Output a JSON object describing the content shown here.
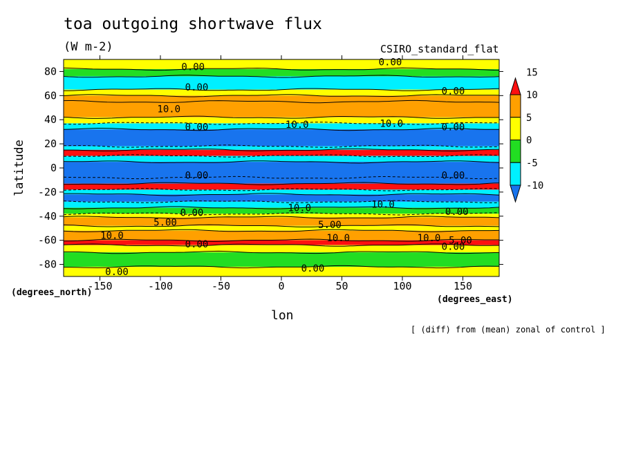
{
  "header": {
    "title": "toa outgoing shortwave flux",
    "units": "(W m-2)",
    "model": "CSIRO_standard_flat",
    "note": "[ (diff) from (mean) zonal of control ]"
  },
  "chart_data": {
    "type": "heatmap",
    "title": "toa outgoing shortwave flux",
    "subtitle": "(W m-2)",
    "xlabel": "lon",
    "ylabel": "latitude",
    "x_units": "(degrees_east)",
    "y_units": "(degrees_north)",
    "xlim": [
      -180,
      180
    ],
    "ylim": [
      -90,
      90
    ],
    "x_ticks": [
      -150,
      -100,
      -50,
      0,
      50,
      100,
      150
    ],
    "y_ticks": [
      -80,
      -60,
      -40,
      -20,
      0,
      20,
      40,
      60,
      80
    ],
    "colorbar": {
      "levels": [
        -10,
        -5,
        0,
        5,
        10,
        15
      ],
      "colors": [
        "#1874ee",
        "#00f0ff",
        "#22dd22",
        "#ffff00",
        "#ffa000",
        "#ff1010"
      ],
      "extend": "both"
    },
    "bands": [
      {
        "lat": [
          82,
          90
        ],
        "value": 2
      },
      {
        "lat": [
          76,
          82
        ],
        "value": -2
      },
      {
        "lat": [
          65,
          76
        ],
        "value": -7
      },
      {
        "lat": [
          60,
          65
        ],
        "value": 2
      },
      {
        "lat": [
          55,
          60
        ],
        "value": 7
      },
      {
        "lat": [
          42,
          55
        ],
        "value": 7
      },
      {
        "lat": [
          37,
          42
        ],
        "value": 2
      },
      {
        "lat": [
          32,
          37
        ],
        "value": -7
      },
      {
        "lat": [
          18,
          32
        ],
        "value": -12
      },
      {
        "lat": [
          15,
          18
        ],
        "value": -7
      },
      {
        "lat": [
          10,
          15
        ],
        "value": 17
      },
      {
        "lat": [
          5,
          10
        ],
        "value": -7
      },
      {
        "lat": [
          -8,
          5
        ],
        "value": -12
      },
      {
        "lat": [
          -13,
          5
        ],
        "value": -12
      },
      {
        "lat": [
          -18,
          -13
        ],
        "value": 17
      },
      {
        "lat": [
          -22,
          -18
        ],
        "value": -7
      },
      {
        "lat": [
          -28,
          -22
        ],
        "value": -12
      },
      {
        "lat": [
          -33,
          -28
        ],
        "value": -7
      },
      {
        "lat": [
          -38,
          -33
        ],
        "value": -2
      },
      {
        "lat": [
          -41,
          -38
        ],
        "value": 2
      },
      {
        "lat": [
          -48,
          -41
        ],
        "value": 7
      },
      {
        "lat": [
          -52,
          -48
        ],
        "value": 2
      },
      {
        "lat": [
          -60,
          -52
        ],
        "value": 7
      },
      {
        "lat": [
          -64,
          -60
        ],
        "value": 12
      },
      {
        "lat": [
          -70,
          -64
        ],
        "value": 2
      },
      {
        "lat": [
          -82,
          -70
        ],
        "value": -2
      },
      {
        "lat": [
          -90,
          -82
        ],
        "value": 2
      }
    ],
    "contour_labels": [
      {
        "text": "0.00",
        "lon": -73,
        "lat": 84
      },
      {
        "text": "0.00",
        "lon": 90,
        "lat": 88
      },
      {
        "text": "0.00",
        "lon": -70,
        "lat": 67
      },
      {
        "text": "0.00",
        "lon": 142,
        "lat": 64
      },
      {
        "text": "10.0",
        "lon": -93,
        "lat": 49
      },
      {
        "text": "10.0",
        "lon": 13,
        "lat": 36
      },
      {
        "text": "10.0",
        "lon": 91,
        "lat": 37
      },
      {
        "text": "0.00",
        "lon": -70,
        "lat": 34
      },
      {
        "text": "0.00",
        "lon": 142,
        "lat": 34
      },
      {
        "text": "0.00",
        "lon": -70,
        "lat": -6
      },
      {
        "text": "0.00",
        "lon": 142,
        "lat": -6
      },
      {
        "text": "10.0",
        "lon": 15,
        "lat": -33
      },
      {
        "text": "10.0",
        "lon": 84,
        "lat": -30
      },
      {
        "text": "5.00",
        "lon": -96,
        "lat": -45
      },
      {
        "text": "5.00",
        "lon": 40,
        "lat": -47
      },
      {
        "text": "0.00",
        "lon": -74,
        "lat": -37
      },
      {
        "text": "0.00",
        "lon": 145,
        "lat": -36
      },
      {
        "text": "10.0",
        "lon": -140,
        "lat": -56
      },
      {
        "text": "10.0",
        "lon": 47,
        "lat": -58
      },
      {
        "text": "10.0",
        "lon": 122,
        "lat": -58
      },
      {
        "text": "5.00",
        "lon": 148,
        "lat": -60
      },
      {
        "text": "0.00",
        "lon": -70,
        "lat": -63
      },
      {
        "text": "0.00",
        "lon": 142,
        "lat": -65
      },
      {
        "text": "0.00",
        "lon": -136,
        "lat": -86
      },
      {
        "text": "0.00",
        "lon": 26,
        "lat": -83
      }
    ]
  }
}
